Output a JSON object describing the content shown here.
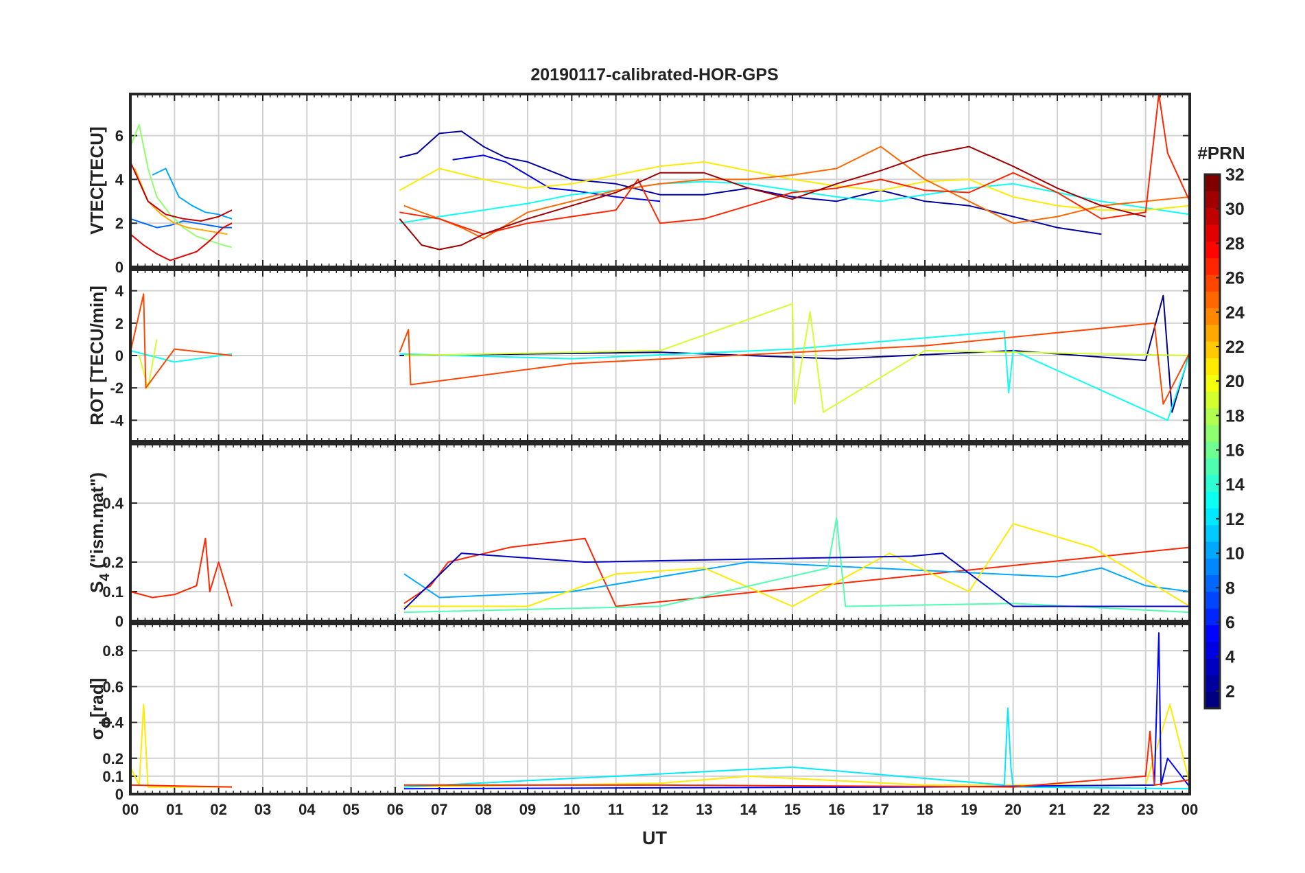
{
  "chart_data": {
    "type": "line",
    "title": "20190117-calibrated-HOR-GPS",
    "xlabel": "UT",
    "x_ticks": [
      "00",
      "01",
      "02",
      "03",
      "04",
      "05",
      "06",
      "07",
      "08",
      "09",
      "10",
      "11",
      "12",
      "13",
      "14",
      "15",
      "16",
      "17",
      "18",
      "19",
      "20",
      "21",
      "22",
      "23",
      "00"
    ],
    "xlim": [
      0,
      24
    ],
    "grid": true,
    "data_gaps_ut": [
      [
        2.3,
        6.1
      ]
    ],
    "panels": [
      {
        "ylabel": "VTEC[TECU]",
        "ylim": [
          0,
          7.9
        ],
        "yticks": [
          0,
          2,
          4,
          6
        ],
        "series": [
          {
            "prn": 2,
            "x": [
              6.1,
              6.5,
              7.0,
              7.5,
              8.0,
              8.5,
              9.0,
              10.0,
              11.0,
              12.0,
              13.0,
              14.0,
              15.0,
              16.0,
              17.0,
              18.0,
              19.0,
              20.0,
              21.0,
              22.0
            ],
            "y": [
              5.0,
              5.2,
              6.1,
              6.2,
              5.5,
              5.0,
              4.8,
              4.0,
              3.8,
              3.3,
              3.3,
              3.6,
              3.2,
              3.0,
              3.5,
              3.0,
              2.8,
              2.3,
              1.8,
              1.5
            ]
          },
          {
            "prn": 4,
            "x": [
              7.3,
              8.0,
              8.5,
              9.0,
              9.5,
              10.0,
              11.0,
              12.0
            ],
            "y": [
              4.9,
              5.1,
              4.8,
              4.2,
              3.6,
              3.5,
              3.2,
              3.0
            ]
          },
          {
            "prn": 8,
            "x": [
              0.0,
              0.3,
              0.6,
              0.9,
              1.2,
              1.5,
              1.8,
              2.1,
              2.3
            ],
            "y": [
              2.2,
              2.0,
              1.8,
              1.9,
              2.1,
              2.0,
              1.9,
              1.8,
              1.8
            ]
          },
          {
            "prn": 10,
            "x": [
              0.5,
              0.8,
              1.1,
              1.4,
              1.7,
              2.0,
              2.3
            ],
            "y": [
              4.2,
              4.5,
              3.2,
              2.8,
              2.5,
              2.4,
              2.2
            ]
          },
          {
            "prn": 13,
            "x": [
              6.1,
              7.0,
              8.0,
              9.0,
              10.0,
              11.0,
              12.0,
              13.0,
              14.0,
              15.0,
              16.0,
              17.0,
              18.0,
              19.0,
              20.0,
              21.0,
              22.0,
              23.0,
              24.0
            ],
            "y": [
              2.0,
              2.3,
              2.6,
              2.9,
              3.3,
              3.5,
              3.8,
              3.9,
              3.8,
              3.5,
              3.2,
              3.0,
              3.3,
              3.6,
              3.8,
              3.4,
              3.0,
              2.7,
              2.4
            ]
          },
          {
            "prn": 17,
            "x": [
              0.0,
              0.2,
              0.4,
              0.6,
              0.9,
              1.2,
              1.5,
              1.8,
              2.1,
              2.3
            ],
            "y": [
              5.5,
              6.5,
              4.5,
              3.2,
              2.4,
              1.8,
              1.4,
              1.2,
              1.0,
              0.9
            ]
          },
          {
            "prn": 21,
            "x": [
              6.1,
              7.0,
              8.0,
              9.0,
              10.0,
              11.0,
              12.0,
              13.0,
              14.0,
              15.0,
              16.0,
              17.0,
              18.0,
              19.0,
              20.0,
              21.0,
              22.0,
              23.0,
              24.0
            ],
            "y": [
              3.5,
              4.5,
              4.0,
              3.6,
              3.8,
              4.2,
              4.6,
              4.8,
              4.4,
              4.0,
              3.7,
              3.5,
              3.9,
              4.0,
              3.2,
              2.8,
              2.6,
              2.6,
              2.8
            ]
          },
          {
            "prn": 23,
            "x": [
              0.1,
              0.4,
              0.7,
              1.0,
              1.3,
              1.6,
              1.9,
              2.2
            ],
            "y": [
              4.5,
              3.0,
              2.4,
              2.0,
              1.8,
              1.7,
              1.6,
              1.5
            ]
          },
          {
            "prn": 25,
            "x": [
              6.2,
              6.6,
              7.0,
              7.5,
              8.0,
              9.0,
              10.0,
              11.0,
              12.0,
              13.0,
              14.0,
              15.0,
              16.0,
              17.0,
              18.0,
              19.0,
              20.0,
              21.0,
              22.0,
              23.0,
              24.0
            ],
            "y": [
              2.8,
              2.5,
              2.2,
              1.8,
              1.3,
              2.5,
              3.0,
              3.5,
              3.8,
              4.0,
              4.0,
              4.2,
              4.5,
              5.5,
              4.0,
              3.0,
              2.0,
              2.3,
              2.8,
              3.0,
              3.2
            ]
          },
          {
            "prn": 27,
            "x": [
              6.1,
              7.0,
              8.0,
              9.0,
              10.0,
              11.0,
              11.5,
              12.0,
              13.0,
              14.0,
              15.0,
              16.0,
              17.0,
              18.0,
              19.0,
              20.0,
              21.0,
              22.0,
              23.0,
              23.3,
              23.5,
              24.0
            ],
            "y": [
              2.5,
              2.2,
              1.5,
              2.0,
              2.3,
              2.6,
              4.0,
              2.0,
              2.2,
              2.8,
              3.4,
              3.6,
              4.0,
              3.5,
              3.4,
              4.3,
              3.4,
              2.2,
              2.5,
              7.9,
              5.2,
              3.0
            ]
          },
          {
            "prn": 29,
            "x": [
              0.0,
              0.3,
              0.6,
              0.9,
              1.2,
              1.5,
              1.8,
              2.1,
              2.3
            ],
            "y": [
              1.5,
              1.0,
              0.6,
              0.3,
              0.5,
              0.7,
              1.2,
              1.8,
              2.0
            ]
          },
          {
            "prn": 30,
            "x": [
              0.0,
              0.4,
              0.8,
              1.2,
              1.6,
              2.0,
              2.3
            ],
            "y": [
              4.8,
              3.0,
              2.4,
              2.2,
              2.1,
              2.3,
              2.6
            ]
          },
          {
            "prn": 31,
            "x": [
              6.1,
              6.6,
              7.0,
              7.5,
              8.0,
              9.0,
              10.0,
              11.0,
              12.0,
              13.0,
              14.0,
              15.0,
              16.0,
              17.0,
              18.0,
              19.0,
              20.0,
              21.0,
              22.0,
              23.0
            ],
            "y": [
              2.2,
              1.0,
              0.8,
              1.0,
              1.5,
              2.2,
              2.8,
              3.4,
              4.3,
              4.3,
              3.6,
              3.1,
              3.8,
              4.4,
              5.1,
              5.5,
              4.6,
              3.6,
              2.8,
              2.3
            ]
          }
        ]
      },
      {
        "ylabel": "ROT [TECU/min]",
        "ylim": [
          -5.3,
          5.3
        ],
        "yticks": [
          -4,
          -2,
          0,
          2,
          4
        ],
        "series": [
          {
            "prn": 1,
            "x": [
              6.1,
              12.0,
              16.0,
              20.0,
              23.0,
              23.4,
              23.6,
              24.0
            ],
            "y": [
              0.0,
              0.2,
              -0.2,
              0.3,
              -0.3,
              3.7,
              -3.5,
              0.2
            ]
          },
          {
            "prn": 13,
            "x": [
              0.0,
              1.0,
              2.3,
              6.1,
              10.0,
              15.0,
              19.8,
              19.9,
              20.0,
              23.5,
              24.0
            ],
            "y": [
              0.3,
              -0.4,
              0.1,
              0.1,
              -0.2,
              0.4,
              1.5,
              -2.3,
              0.3,
              -4.0,
              0.1
            ]
          },
          {
            "prn": 19,
            "x": [
              0.2,
              0.4,
              0.6,
              6.2,
              12.0,
              15.0,
              15.05,
              15.4,
              15.7,
              18.0,
              24.0
            ],
            "y": [
              0.0,
              -2.0,
              1.0,
              0.0,
              0.3,
              3.2,
              -3.0,
              2.7,
              -3.5,
              0.3,
              0.0
            ]
          },
          {
            "prn": 26,
            "x": [
              0.0,
              0.3,
              0.35,
              1.0,
              2.3,
              6.1,
              6.3,
              6.35,
              10.0,
              18.0,
              23.2,
              23.4,
              24.0
            ],
            "y": [
              0.2,
              3.8,
              -2.0,
              0.4,
              0.0,
              0.2,
              1.6,
              -1.8,
              -0.5,
              0.6,
              2.0,
              -3.0,
              0.2
            ]
          }
        ]
      },
      {
        "ylabel_main": "S",
        "ylabel_sub": "4",
        "ylabel_rest": " (\"ism.mat\")",
        "ylim": [
          0,
          0.6
        ],
        "yticks": [
          0,
          0.1,
          0.2,
          0.4
        ],
        "series": [
          {
            "prn": 27,
            "x": [
              0.0,
              0.5,
              1.0,
              1.5,
              1.7,
              1.8,
              2.0,
              2.3,
              6.2,
              6.8,
              7.2,
              8.6,
              10.3,
              11.0,
              24.0
            ],
            "y": [
              0.1,
              0.08,
              0.09,
              0.12,
              0.28,
              0.1,
              0.2,
              0.05,
              0.06,
              0.12,
              0.2,
              0.25,
              0.28,
              0.05,
              0.25
            ]
          },
          {
            "prn": 10,
            "x": [
              6.2,
              7.0,
              10.0,
              14.0,
              21.0,
              22.0,
              23.0,
              24.0
            ],
            "y": [
              0.16,
              0.08,
              0.1,
              0.2,
              0.15,
              0.18,
              0.12,
              0.1
            ]
          },
          {
            "prn": 21,
            "x": [
              6.2,
              9.0,
              11.0,
              13.0,
              15.0,
              17.2,
              19.0,
              20.0,
              21.8,
              24.0
            ],
            "y": [
              0.05,
              0.05,
              0.16,
              0.18,
              0.05,
              0.23,
              0.1,
              0.33,
              0.25,
              0.05
            ]
          },
          {
            "prn": 15,
            "x": [
              6.2,
              12.0,
              15.8,
              16.0,
              16.2,
              20.0,
              24.0
            ],
            "y": [
              0.03,
              0.05,
              0.18,
              0.35,
              0.05,
              0.06,
              0.03
            ]
          },
          {
            "prn": 3,
            "x": [
              6.2,
              7.5,
              10.3,
              17.7,
              18.4,
              20.0,
              24.0
            ],
            "y": [
              0.04,
              0.23,
              0.2,
              0.22,
              0.23,
              0.05,
              0.05
            ]
          }
        ]
      },
      {
        "ylabel_main": "σ",
        "ylabel_sub": "ϕ",
        "ylabel_rest": "[rad]",
        "ylim": [
          0,
          0.95
        ],
        "yticks": [
          0,
          0.1,
          0.2,
          0.4,
          0.6,
          0.8
        ],
        "series": [
          {
            "prn": 21,
            "x": [
              0.0,
              0.2,
              0.3,
              0.4,
              2.3,
              6.2,
              12.0,
              14.0,
              18.0,
              23.0,
              23.55,
              24.0
            ],
            "y": [
              0.15,
              0.05,
              0.5,
              0.04,
              0.04,
              0.04,
              0.06,
              0.1,
              0.05,
              0.05,
              0.5,
              0.06
            ]
          },
          {
            "prn": 12,
            "x": [
              6.2,
              15.0,
              19.8,
              19.88,
              19.95,
              20.0,
              24.0
            ],
            "y": [
              0.04,
              0.15,
              0.05,
              0.48,
              0.15,
              0.04,
              0.03
            ]
          },
          {
            "prn": 5,
            "x": [
              6.2,
              18.0,
              23.2,
              23.3,
              23.35,
              23.5,
              24.0
            ],
            "y": [
              0.03,
              0.04,
              0.05,
              0.9,
              0.05,
              0.2,
              0.04
            ]
          },
          {
            "prn": 27,
            "x": [
              0.0,
              2.3,
              6.2,
              12.0,
              20.0,
              23.0,
              23.1,
              23.2,
              24.0
            ],
            "y": [
              0.05,
              0.04,
              0.05,
              0.05,
              0.04,
              0.1,
              0.35,
              0.05,
              0.08
            ]
          }
        ]
      }
    ],
    "colorbar": {
      "label": "#PRN",
      "range": [
        1,
        32
      ],
      "ticks": [
        "2",
        "4",
        "6",
        "8",
        "10",
        "12",
        "14",
        "16",
        "18",
        "20",
        "22",
        "24",
        "26",
        "28",
        "30",
        "32"
      ],
      "colormap": "jet"
    }
  }
}
